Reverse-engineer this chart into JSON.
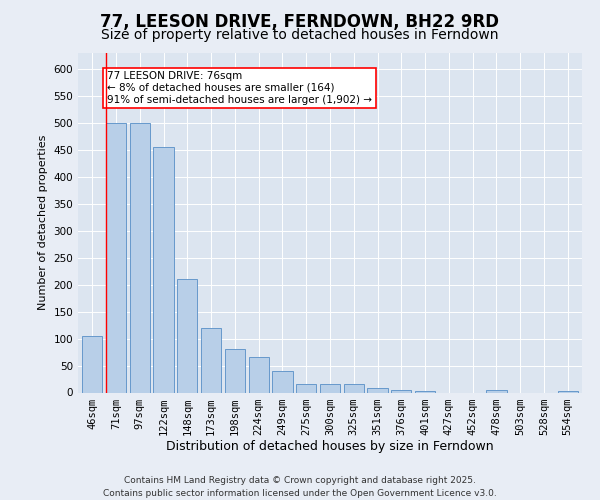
{
  "title": "77, LEESON DRIVE, FERNDOWN, BH22 9RD",
  "subtitle": "Size of property relative to detached houses in Ferndown",
  "xlabel": "Distribution of detached houses by size in Ferndown",
  "ylabel": "Number of detached properties",
  "categories": [
    "46sqm",
    "71sqm",
    "97sqm",
    "122sqm",
    "148sqm",
    "173sqm",
    "198sqm",
    "224sqm",
    "249sqm",
    "275sqm",
    "300sqm",
    "325sqm",
    "351sqm",
    "376sqm",
    "401sqm",
    "427sqm",
    "452sqm",
    "478sqm",
    "503sqm",
    "528sqm",
    "554sqm"
  ],
  "values": [
    105,
    500,
    500,
    455,
    210,
    120,
    80,
    65,
    40,
    15,
    15,
    15,
    8,
    5,
    2,
    0,
    0,
    5,
    0,
    0,
    3
  ],
  "bar_color": "#b8cfe8",
  "bar_edge_color": "#6699cc",
  "annotation_text": "77 LEESON DRIVE: 76sqm\n← 8% of detached houses are smaller (164)\n91% of semi-detached houses are larger (1,902) →",
  "ylim": [
    0,
    630
  ],
  "yticks": [
    0,
    50,
    100,
    150,
    200,
    250,
    300,
    350,
    400,
    450,
    500,
    550,
    600
  ],
  "bg_color": "#e8edf5",
  "plot_bg_color": "#dce5f0",
  "grid_color": "#ffffff",
  "footer": "Contains HM Land Registry data © Crown copyright and database right 2025.\nContains public sector information licensed under the Open Government Licence v3.0.",
  "title_fontsize": 12,
  "subtitle_fontsize": 10,
  "xlabel_fontsize": 9,
  "ylabel_fontsize": 8,
  "tick_fontsize": 7.5,
  "footer_fontsize": 6.5,
  "annot_fontsize": 7.5
}
